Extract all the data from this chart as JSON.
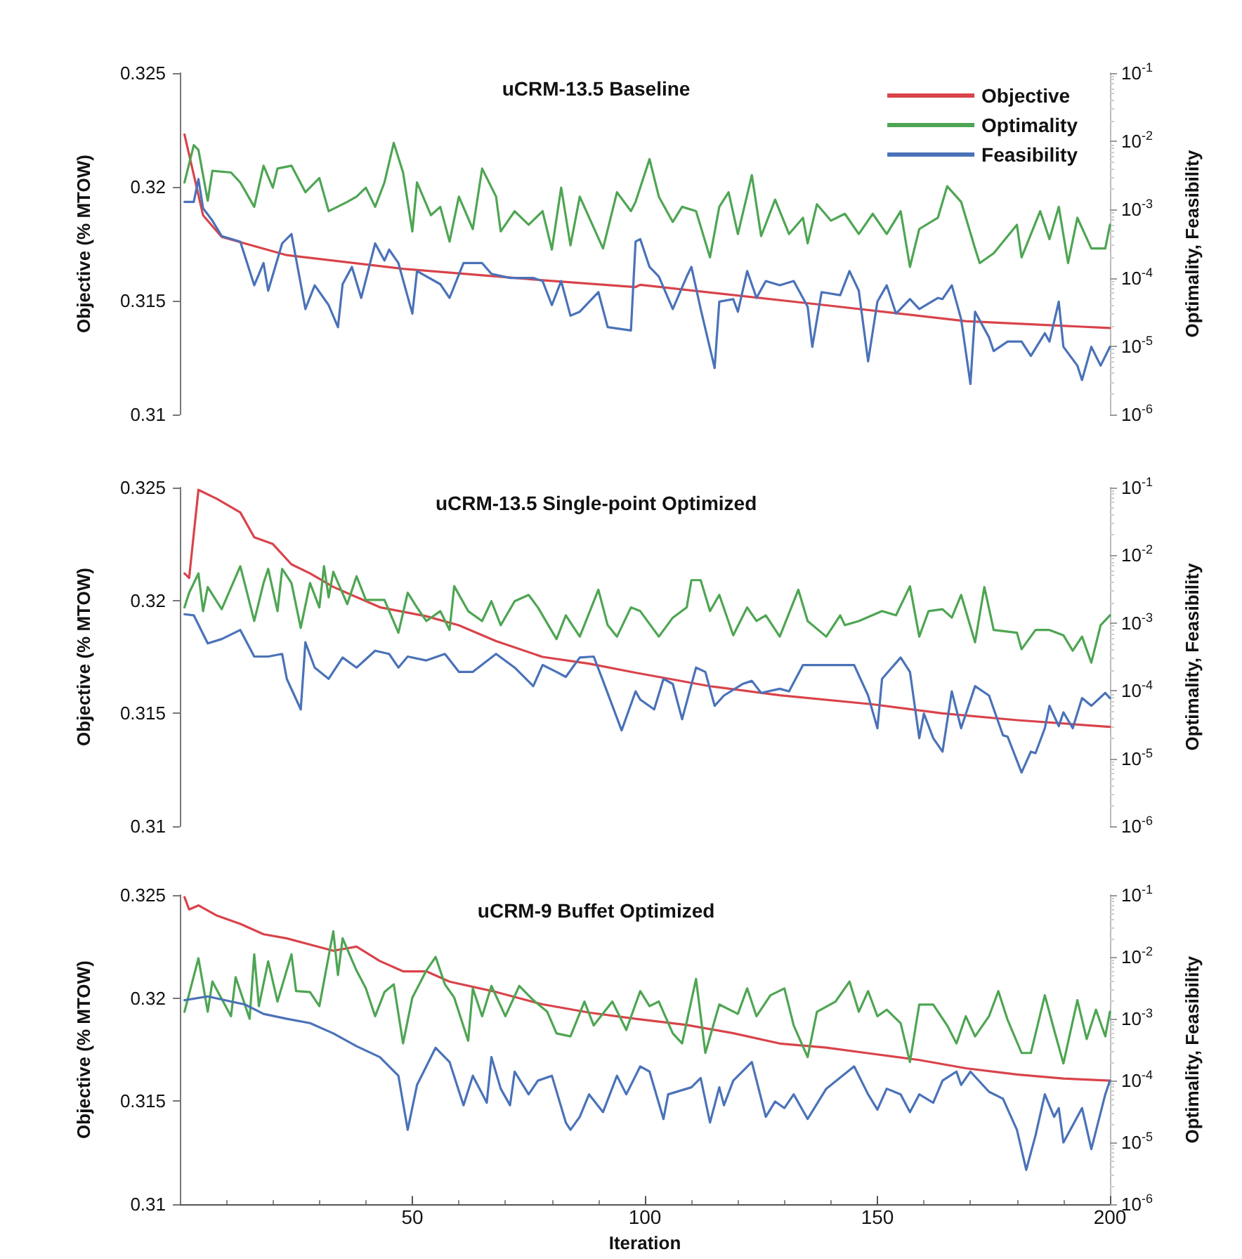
{
  "chart_data": [
    {
      "type": "line",
      "title": "uCRM-13.5 Baseline",
      "ylabel": "Objective (% MTOW)",
      "y2label": "Optimality, Feasibility",
      "xlim": [
        0,
        200
      ],
      "xticks": [
        50,
        100,
        150,
        200
      ],
      "ylim": [
        0.31,
        0.325
      ],
      "yticks": [
        0.31,
        0.315,
        0.32,
        0.325
      ],
      "y2lim": [
        1e-06,
        0.1
      ],
      "y2ticks": [
        {
          "value": 1e-06,
          "label": "10$^{-6}$"
        },
        {
          "value": 1e-05,
          "label": "10$^{-5}$"
        },
        {
          "value": 0.0001,
          "label": "10$^{-4}$"
        },
        {
          "value": 0.001,
          "label": "10$^{-3}$"
        },
        {
          "value": 0.01,
          "label": "10$^{-2}$"
        },
        {
          "value": 0.1,
          "label": "10$^{-1}$"
        }
      ],
      "log": "y2",
      "tick_labels": "y",
      "legend": "top right",
      "series": [
        {
          "name": "Objective",
          "color": "#d9434a",
          "x": [
            1,
            5,
            9,
            23,
            48,
            78,
            98,
            99,
            139,
            169,
            200
          ],
          "values": [
            0.3223,
            0.31875,
            0.3178,
            0.317,
            0.3164,
            0.3159,
            0.3156,
            0.3157,
            0.3148,
            0.3141,
            0.3138
          ]
        },
        {
          "name": "Optimality",
          "color": "#4ea553",
          "axis": "y2",
          "x": [
            1,
            3,
            4,
            6,
            7,
            11,
            13,
            16,
            18,
            20,
            21,
            24,
            27,
            30,
            32,
            36,
            38,
            40,
            42,
            44,
            46,
            48,
            50,
            51,
            54,
            56,
            58,
            60,
            63,
            65,
            68,
            69,
            72,
            75,
            78,
            80,
            82,
            84,
            86,
            91,
            94,
            97,
            98,
            101,
            103,
            106,
            108,
            111,
            114,
            116,
            118,
            120,
            123,
            125,
            128,
            131,
            134,
            135,
            137,
            140,
            143,
            146,
            149,
            152,
            155,
            157,
            159,
            163,
            165,
            168,
            171,
            172,
            175,
            180,
            181,
            185,
            187,
            189,
            191,
            193,
            196,
            199,
            200
          ],
          "values": [
            0.0025,
            0.0088,
            0.0075,
            0.00135,
            0.0037,
            0.0035,
            0.0025,
            0.0011,
            0.0044,
            0.0021,
            0.004,
            0.0044,
            0.0018,
            0.0029,
            0.00095,
            0.0013,
            0.00155,
            0.0021,
            0.0011,
            0.0025,
            0.0095,
            0.0035,
            0.00048,
            0.0025,
            0.00083,
            0.0011,
            0.00034,
            0.00155,
            0.00052,
            0.004,
            0.00155,
            0.00048,
            0.00095,
            0.0006,
            0.00095,
            0.00026,
            0.0021,
            0.0003,
            0.00155,
            0.00027,
            0.0018,
            0.00095,
            0.0013,
            0.0055,
            0.00155,
            0.00066,
            0.0011,
            0.00095,
            0.0002,
            0.0011,
            0.0018,
            0.00044,
            0.0032,
            0.00041,
            0.0014,
            0.00044,
            0.00076,
            0.00032,
            0.0012,
            0.00069,
            0.00087,
            0.00044,
            0.00087,
            0.00044,
            0.00095,
            0.000145,
            0.00052,
            0.00076,
            0.0022,
            0.0013,
            0.00027,
            0.000165,
            0.00023,
            0.0006,
            0.0002,
            0.00095,
            0.00037,
            0.0011,
            0.000165,
            0.00076,
            0.00027,
            0.00027,
            0.0006
          ]
        },
        {
          "name": "Feasibility",
          "color": "#4a72b8",
          "axis": "y2",
          "x": [
            1,
            3,
            4,
            5,
            7,
            9,
            13,
            16,
            18,
            19,
            22,
            24,
            27,
            29,
            32,
            34,
            35,
            37,
            39,
            42,
            44,
            45,
            47,
            50,
            51,
            56,
            58,
            61,
            65,
            67,
            71,
            76,
            78,
            80,
            82,
            84,
            86,
            90,
            92,
            97,
            98,
            99,
            101,
            103,
            106,
            109,
            110,
            112,
            115,
            116,
            119,
            120,
            122,
            124,
            126,
            129,
            132,
            135,
            136,
            138,
            142,
            144,
            146,
            148,
            150,
            152,
            154,
            157,
            159,
            163,
            164,
            166,
            168,
            170,
            171,
            174,
            175,
            178,
            181,
            183,
            186,
            187,
            189,
            190,
            193,
            194,
            196,
            198,
            200
          ],
          "values": [
            0.0013,
            0.0013,
            0.0028,
            0.00105,
            0.00069,
            0.00041,
            0.00034,
            7.8e-05,
            0.000165,
            6.5e-05,
            0.00032,
            0.00044,
            3.5e-05,
            7.8e-05,
            4e-05,
            1.9e-05,
            8.1e-05,
            0.000145,
            5.1e-05,
            0.00032,
            0.00018,
            0.00026,
            0.000165,
            3e-05,
            0.000126,
            8.1e-05,
            5.1e-05,
            0.000165,
            0.000165,
            0.000115,
            0.0001,
            0.0001,
            9e-05,
            4e-05,
            9e-05,
            2.8e-05,
            3.2e-05,
            6.2e-05,
            1.9e-05,
            1.7e-05,
            0.00034,
            0.00037,
            0.000145,
            0.000105,
            3.5e-05,
            0.000105,
            0.000145,
            3.5e-05,
            4.8e-06,
            4.5e-05,
            4.9e-05,
            3.2e-05,
            0.000126,
            5.1e-05,
            9e-05,
            7.8e-05,
            9e-05,
            3.8e-05,
            9.8e-06,
            6.2e-05,
            5.6e-05,
            0.000126,
            6.5e-05,
            6e-06,
            4.5e-05,
            7.8e-05,
            3e-05,
            4.9e-05,
            3.5e-05,
            5.1e-05,
            4.9e-05,
            7.8e-05,
            2.5e-05,
            2.8e-06,
            3.2e-05,
            1.35e-05,
            8.5e-06,
            1.17e-05,
            1.17e-05,
            7.2e-06,
            1.55e-05,
            1.17e-05,
            4.5e-05,
            9.8e-06,
            5.2e-06,
            3.2e-06,
            9.8e-06,
            5.2e-06,
            9.8e-06
          ]
        }
      ]
    },
    {
      "type": "line",
      "title": "uCRM-13.5 Single-point Optimized",
      "ylabel": "Objective (% MTOW)",
      "y2label": "Optimality, Feasibility",
      "xlim": [
        0,
        200
      ],
      "xticks": [
        50,
        100,
        150,
        200
      ],
      "ylim": [
        0.31,
        0.325
      ],
      "yticks": [
        0.31,
        0.315,
        0.32,
        0.325
      ],
      "y2lim": [
        1e-06,
        0.1
      ],
      "y2ticks": [
        {
          "value": 1e-06,
          "label": "10$^{-6}$"
        },
        {
          "value": 1e-05,
          "label": "10$^{-5}$"
        },
        {
          "value": 0.0001,
          "label": "10$^{-4}$"
        },
        {
          "value": 0.001,
          "label": "10$^{-3}$"
        },
        {
          "value": 0.01,
          "label": "10$^{-2}$"
        },
        {
          "value": 0.1,
          "label": "10$^{-1}$"
        }
      ],
      "log": "y2",
      "tick_labels": "y",
      "series": [
        {
          "color": "#d9434a",
          "x": [
            1,
            2,
            4,
            8,
            13,
            16,
            20,
            24,
            28,
            33,
            43,
            53,
            60,
            68,
            78,
            88,
            98,
            114,
            129,
            149,
            164,
            180,
            200
          ],
          "values": [
            0.3212,
            0.321,
            0.3249,
            0.3245,
            0.3239,
            0.3228,
            0.3225,
            0.3216,
            0.3212,
            0.3206,
            0.3197,
            0.3193,
            0.3189,
            0.3182,
            0.3175,
            0.3172,
            0.3168,
            0.3162,
            0.3158,
            0.3154,
            0.315,
            0.3147,
            0.3144
          ]
        },
        {
          "color": "#4ea553",
          "axis": "y2",
          "x": [
            1,
            2,
            4,
            5,
            6,
            9,
            13,
            16,
            18,
            19,
            21,
            22,
            24,
            26,
            28,
            30,
            31,
            32,
            33,
            36,
            38,
            40,
            44,
            47,
            49,
            51,
            53,
            56,
            58,
            59,
            62,
            65,
            67,
            69,
            72,
            75,
            77,
            81,
            83,
            86,
            90,
            92,
            94,
            97,
            99,
            103,
            106,
            109,
            110,
            112,
            114,
            116,
            119,
            122,
            124,
            126,
            129,
            133,
            135,
            139,
            142,
            143,
            146,
            151,
            154,
            157,
            159,
            161,
            164,
            166,
            168,
            171,
            173,
            175,
            180,
            181,
            184,
            187,
            190,
            192,
            194,
            196,
            198,
            200
          ],
          "values": [
            0.0017,
            0.0028,
            0.0054,
            0.0015,
            0.0034,
            0.0016,
            0.0069,
            0.00107,
            0.0039,
            0.0063,
            0.0015,
            0.0063,
            0.0039,
            0.00085,
            0.0039,
            0.0017,
            0.0069,
            0.0024,
            0.0057,
            0.0019,
            0.0049,
            0.0022,
            0.0022,
            0.00072,
            0.0028,
            0.0017,
            0.00107,
            0.0015,
            0.00079,
            0.0035,
            0.0015,
            0.00107,
            0.0021,
            0.00093,
            0.0021,
            0.0026,
            0.0017,
            0.00058,
            0.0013,
            0.00063,
            0.0031,
            0.00093,
            0.00063,
            0.0017,
            0.0015,
            0.00063,
            0.0012,
            0.0017,
            0.0043,
            0.0043,
            0.0015,
            0.0026,
            0.00066,
            0.0017,
            0.00107,
            0.0013,
            0.00063,
            0.0031,
            0.00107,
            0.00063,
            0.0013,
            0.00093,
            0.00107,
            0.0015,
            0.0013,
            0.0035,
            0.00063,
            0.0015,
            0.0016,
            0.0012,
            0.0026,
            0.00052,
            0.0034,
            0.00079,
            0.00072,
            0.00041,
            0.00079,
            0.00079,
            0.00066,
            0.00039,
            0.00063,
            0.00026,
            0.00093,
            0.0013
          ]
        },
        {
          "color": "#4a72b8",
          "axis": "y2",
          "x": [
            1,
            3,
            6,
            9,
            13,
            16,
            19,
            22,
            23,
            26,
            27,
            29,
            32,
            35,
            38,
            42,
            45,
            47,
            49,
            53,
            57,
            60,
            63,
            68,
            72,
            76,
            78,
            81,
            83,
            86,
            89,
            91,
            95,
            98,
            99,
            102,
            104,
            106,
            108,
            111,
            113,
            115,
            117,
            121,
            123,
            125,
            129,
            131,
            134,
            137,
            145,
            148,
            150,
            151,
            155,
            157,
            159,
            160,
            162,
            164,
            166,
            168,
            171,
            174,
            177,
            178,
            181,
            183,
            184,
            186,
            187,
            189,
            190,
            192,
            194,
            196,
            199,
            200
          ],
          "values": [
            0.00135,
            0.0013,
            0.0005,
            0.00058,
            0.00079,
            0.00032,
            0.00032,
            0.00035,
            0.00015,
            5.3e-05,
            0.00052,
            0.00022,
            0.00015,
            0.00031,
            0.00022,
            0.00039,
            0.00035,
            0.00022,
            0.00032,
            0.00028,
            0.00035,
            0.00019,
            0.00019,
            0.00035,
            0.00022,
            0.000117,
            0.00024,
            0.00019,
            0.00016,
            0.00031,
            0.00032,
            0.00014,
            2.6e-05,
            9.8e-05,
            7.4e-05,
            5.3e-05,
            0.00015,
            0.000126,
            3.8e-05,
            0.00022,
            0.00019,
            6e-05,
            8.5e-05,
            0.000126,
            0.00014,
            9.3e-05,
            0.000107,
            9.8e-05,
            0.00024,
            0.00024,
            0.00024,
            8.5e-05,
            2.8e-05,
            0.00015,
            0.00031,
            0.00019,
            2e-05,
            4.6e-05,
            2e-05,
            1.26e-05,
            9.8e-05,
            2.8e-05,
            0.000117,
            8.5e-05,
            2.2e-05,
            2.1e-05,
            6.2e-06,
            1.26e-05,
            1.2e-05,
            2.8e-05,
            6e-05,
            3e-05,
            4.8e-05,
            2.8e-05,
            7.8e-05,
            6e-05,
            9.3e-05,
            7.8e-05
          ]
        }
      ]
    },
    {
      "type": "line",
      "title": "uCRM-9 Buffet Optimized",
      "xlabel": "Iteration",
      "ylabel": "Objective (% MTOW)",
      "y2label": "Optimality, Feasibility",
      "xlim": [
        0,
        200
      ],
      "xticks": [
        50,
        100,
        150,
        200
      ],
      "ylim": [
        0.31,
        0.325
      ],
      "yticks": [
        0.31,
        0.315,
        0.32,
        0.325
      ],
      "y2lim": [
        1e-06,
        0.1
      ],
      "y2ticks": [
        {
          "value": 1e-06,
          "label": "10$^{-6}$"
        },
        {
          "value": 1e-05,
          "label": "10$^{-5}$"
        },
        {
          "value": 0.0001,
          "label": "10$^{-4}$"
        },
        {
          "value": 0.001,
          "label": "10$^{-3}$"
        },
        {
          "value": 0.01,
          "label": "10$^{-2}$"
        },
        {
          "value": 0.1,
          "label": "10$^{-1}$"
        }
      ],
      "log": "y2",
      "series": [
        {
          "color": "#d9434a",
          "x": [
            1,
            2,
            4,
            8,
            13,
            18,
            23,
            28,
            33,
            38,
            43,
            48,
            53,
            58,
            68,
            78,
            88,
            98,
            109,
            119,
            129,
            139,
            149,
            159,
            169,
            180,
            190,
            200
          ],
          "values": [
            0.3249,
            0.3243,
            0.3245,
            0.324,
            0.3236,
            0.3231,
            0.3229,
            0.3226,
            0.3223,
            0.3225,
            0.3218,
            0.3213,
            0.3213,
            0.3208,
            0.3203,
            0.3197,
            0.3193,
            0.319,
            0.3187,
            0.3183,
            0.3178,
            0.3176,
            0.3173,
            0.317,
            0.3166,
            0.3163,
            0.3161,
            0.316
          ]
        },
        {
          "color": "#4ea553",
          "axis": "y2",
          "x": [
            1,
            4,
            6,
            7,
            11,
            12,
            15,
            16,
            17,
            19,
            21,
            24,
            25,
            28,
            30,
            33,
            34,
            35,
            38,
            40,
            42,
            44,
            46,
            48,
            50,
            53,
            55,
            57,
            59,
            62,
            63,
            65,
            67,
            70,
            73,
            76,
            79,
            81,
            84,
            87,
            89,
            93,
            96,
            99,
            101,
            103,
            106,
            108,
            111,
            113,
            116,
            120,
            122,
            124,
            127,
            130,
            132,
            135,
            137,
            141,
            144,
            146,
            148,
            150,
            152,
            155,
            157,
            159,
            162,
            165,
            167,
            169,
            171,
            174,
            176,
            178,
            181,
            183,
            186,
            188,
            190,
            193,
            195,
            197,
            199,
            200
          ],
          "values": [
            0.0013,
            0.0095,
            0.0013,
            0.004,
            0.0011,
            0.0047,
            0.001,
            0.011,
            0.0016,
            0.0085,
            0.0019,
            0.011,
            0.0028,
            0.0027,
            0.0016,
            0.026,
            0.0051,
            0.02,
            0.006,
            0.0031,
            0.0011,
            0.0027,
            0.0036,
            0.0004,
            0.0022,
            0.006,
            0.01,
            0.0036,
            0.0022,
            0.00044,
            0.0031,
            0.0011,
            0.0034,
            0.0011,
            0.0034,
            0.002,
            0.0013,
            0.00058,
            0.00052,
            0.0019,
            0.00078,
            0.0019,
            0.00066,
            0.0028,
            0.0016,
            0.0019,
            0.00058,
            0.0004,
            0.0044,
            0.00028,
            0.0017,
            0.0012,
            0.0031,
            0.0011,
            0.0024,
            0.0031,
            0.00078,
            0.00024,
            0.0013,
            0.0019,
            0.004,
            0.0013,
            0.0028,
            0.0011,
            0.0014,
            0.00085,
            0.0002,
            0.0017,
            0.0017,
            0.00078,
            0.0004,
            0.0011,
            0.00052,
            0.0011,
            0.0028,
            0.00096,
            0.00028,
            0.00028,
            0.0024,
            0.00066,
            0.00019,
            0.002,
            0.00047,
            0.0014,
            0.00052,
            0.0013
          ]
        },
        {
          "color": "#4a72b8",
          "axis": "y2",
          "x": [
            1,
            6,
            11,
            14,
            18,
            23,
            28,
            33,
            38,
            43,
            47,
            49,
            51,
            55,
            58,
            61,
            63,
            66,
            67,
            69,
            71,
            72,
            75,
            77,
            80,
            83,
            84,
            86,
            88,
            91,
            94,
            96,
            99,
            101,
            104,
            105,
            110,
            112,
            114,
            116,
            117,
            119,
            123,
            126,
            128,
            130,
            132,
            135,
            139,
            145,
            148,
            150,
            152,
            155,
            157,
            159,
            162,
            164,
            167,
            168,
            170,
            174,
            177,
            180,
            182,
            184,
            186,
            188,
            189,
            190,
            194,
            196,
            199,
            200
          ],
          "values": [
            0.002,
            0.0023,
            0.0019,
            0.0017,
            0.0012,
            0.001,
            0.00085,
            0.00058,
            0.00036,
            0.00024,
            0.00012,
            1.6e-05,
            8.5e-05,
            0.00034,
            0.0002,
            4e-05,
            0.00012,
            4.4e-05,
            0.00024,
            7.4e-05,
            4e-05,
            0.00014,
            6e-05,
            0.0001,
            0.00012,
            2.1e-05,
            1.6e-05,
            2.6e-05,
            6e-05,
            3.1e-05,
            0.00012,
            6e-05,
            0.00017,
            0.00014,
            2.4e-05,
            6e-05,
            7.8e-05,
            0.00011,
            2.1e-05,
            7.8e-05,
            4e-05,
            0.0001,
            0.0002,
            2.6e-05,
            4.6e-05,
            3.6e-05,
            6e-05,
            2.4e-05,
            7.4e-05,
            0.00017,
            6e-05,
            3.4e-05,
            7.4e-05,
            6e-05,
            3.1e-05,
            6e-05,
            4.4e-05,
            0.0001,
            0.00014,
            8.5e-05,
            0.00014,
            6.6e-05,
            5.1e-05,
            1.6e-05,
            3.6e-06,
            1.3e-05,
            6e-05,
            2.6e-05,
            3.6e-05,
            1e-05,
            3.6e-05,
            7.8e-06,
            6e-05,
            0.0001
          ]
        }
      ]
    }
  ]
}
